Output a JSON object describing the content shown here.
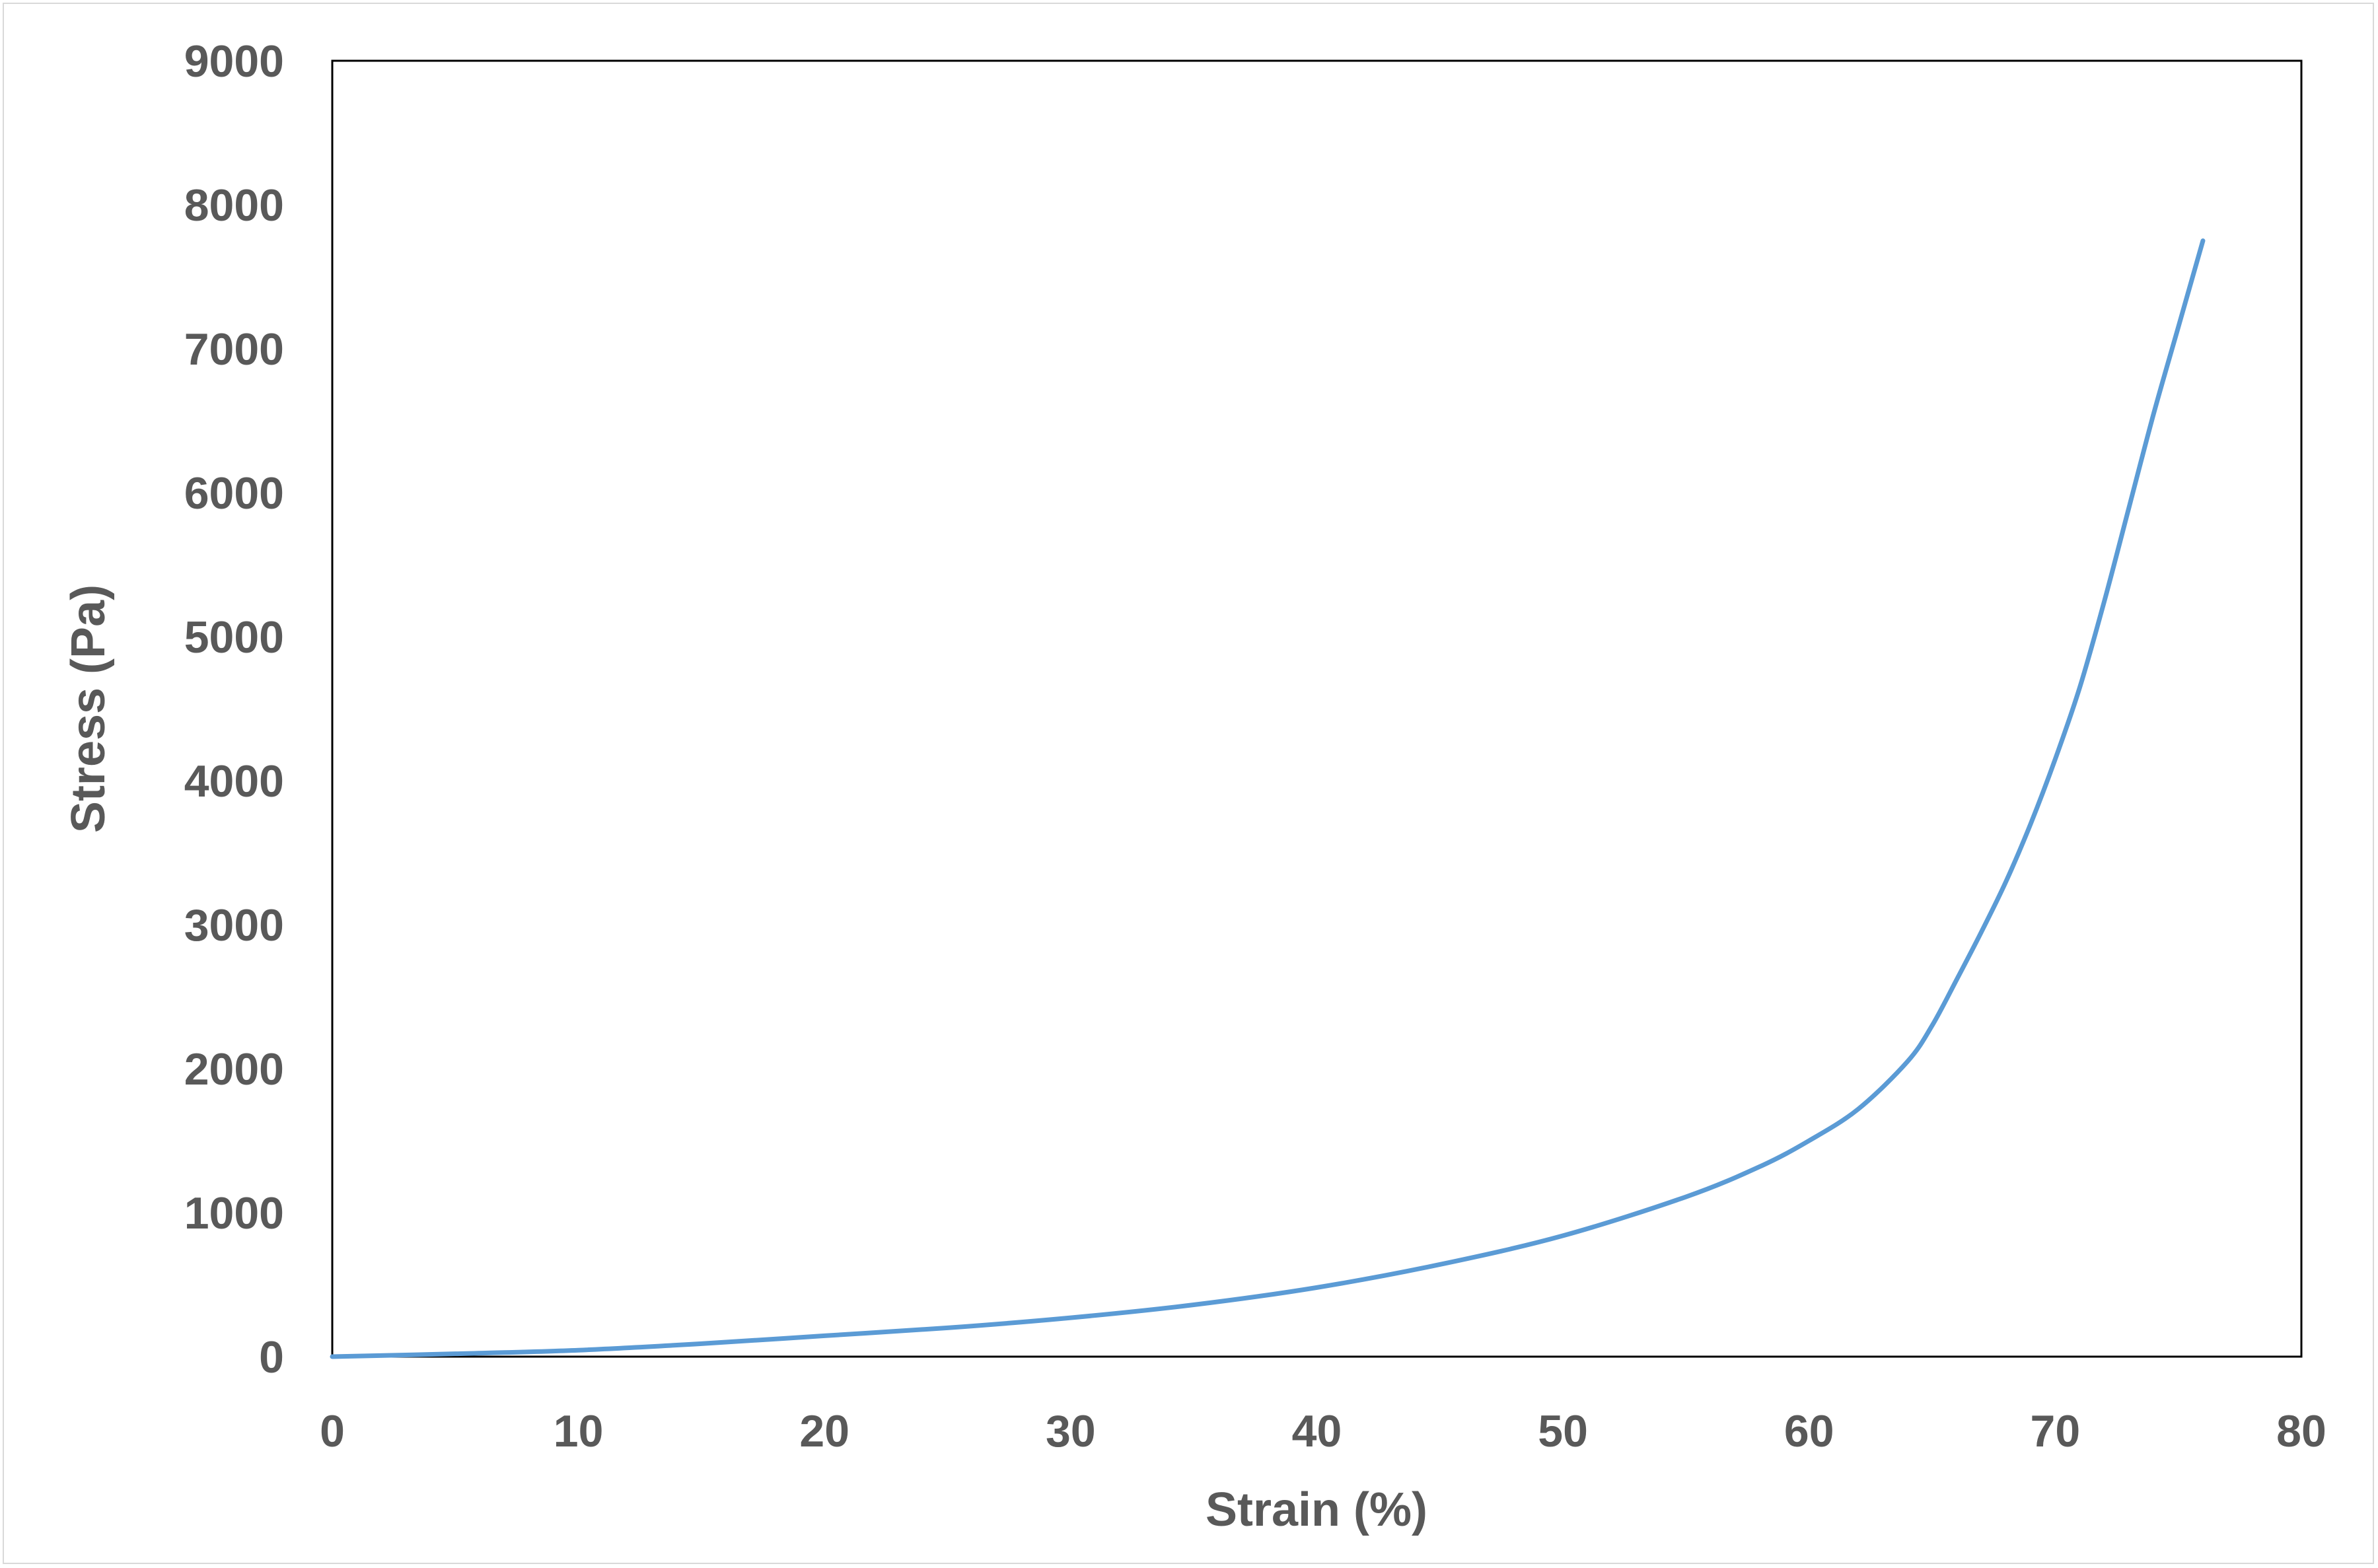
{
  "chart_data": {
    "type": "line",
    "title": "",
    "xlabel": "Strain (%)",
    "ylabel": "Stress (Pa)",
    "xlim": [
      0,
      80
    ],
    "ylim": [
      0,
      9000
    ],
    "x_ticks": [
      "0",
      "10",
      "20",
      "30",
      "40",
      "50",
      "60",
      "70",
      "80"
    ],
    "y_ticks": [
      "0",
      "1000",
      "2000",
      "3000",
      "4000",
      "5000",
      "6000",
      "7000",
      "8000",
      "9000"
    ],
    "grid": false,
    "legend": "none",
    "line_color": "#5b9bd5",
    "series": [
      {
        "x": [
          0,
          5,
          10,
          15,
          20,
          25,
          30,
          35,
          40,
          45,
          50,
          55,
          58,
          60,
          62,
          64,
          65,
          66,
          67,
          68,
          69,
          70,
          71,
          72,
          73,
          74,
          75,
          76
        ],
        "y": [
          0,
          20,
          45,
          90,
          145,
          200,
          270,
          360,
          480,
          640,
          840,
          1110,
          1320,
          1500,
          1720,
          2050,
          2300,
          2620,
          2950,
          3300,
          3700,
          4150,
          4650,
          5250,
          5900,
          6550,
          7150,
          7750
        ]
      }
    ]
  }
}
